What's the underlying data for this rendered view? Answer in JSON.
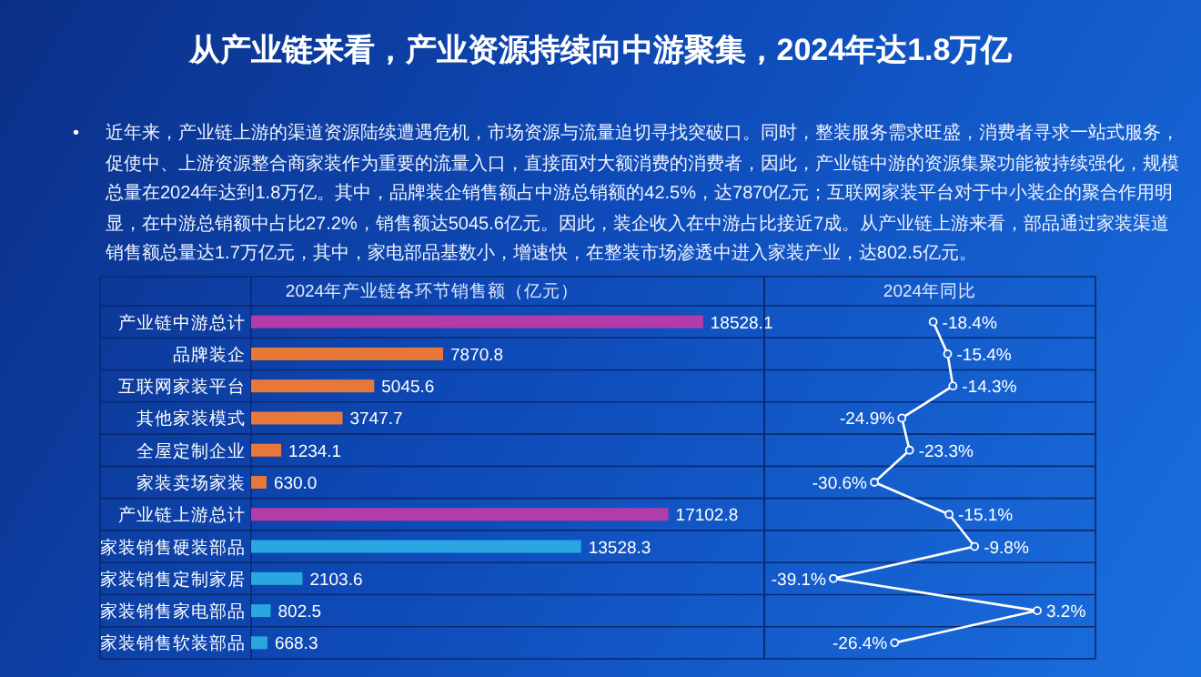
{
  "chart_data": [
    {
      "type": "other",
      "title": "从产业链来看，产业资源持续向中游聚集，2024年达1.8万亿",
      "annotations": [
        "•",
        "近年来，产业链上游的渠道资源陆续遭遇危机，市场资源与流量迫切寻找突破口。同时，整装服务需求旺盛，消费者寻求一站式服务，促使中、上游资源整合商家装作为重要的流量入口，直接面对大额消费的消费者，因此，产业链中游的资源集聚功能被持续强化，规模总量在2024年达到1.8万亿。其中，品牌装企销售额占中游总销额的42.5%，达7870亿元；互联网家装平台对于中小装企的聚合作用明显，在中游总销额中占比27.2%，销售额达5045.6亿元。因此，装企收入在中游占比接近7成。从产业链上游来看，部品通过家装渠道销售额总量达1.7万亿元，其中，家电部品基数小，增速快，在整装市场渗透中进入家装产业，达802.5亿元。"
      ]
    },
    {
      "type": "bar",
      "orientation": "horizontal",
      "title": "2024年产业链各环节销售额（亿元）",
      "tick_labels": "y",
      "categories": [
        "产业链中游总计",
        "品牌装企",
        "互联网家装平台",
        "其他家装模式",
        "全屋定制企业",
        "家装卖场家装",
        "产业链上游总计",
        "家装销售硬装部品",
        "家装销售定制家居",
        "家装销售家电部品",
        "家装销售软装部品"
      ],
      "values": [
        18528.1,
        7870.8,
        5045.6,
        3747.7,
        1234.1,
        630.0,
        17102.8,
        13528.3,
        2103.6,
        802.5,
        668.3
      ],
      "value_labels": [
        "18528.1",
        "7870.8",
        "5045.6",
        "3747.7",
        "1234.1",
        "630.0",
        "17102.8",
        "13528.3",
        "2103.6",
        "802.5",
        "668.3"
      ],
      "colors": [
        "#b43ca8",
        "#e8783a",
        "#e8783a",
        "#e8783a",
        "#e8783a",
        "#e8783a",
        "#b43ca8",
        "#2aa6e0",
        "#2aa6e0",
        "#2aa6e0",
        "#2aa6e0"
      ]
    },
    {
      "type": "line",
      "orientation": "horizontal",
      "title": "2024年同比",
      "tick_labels": false,
      "marker": "circle",
      "categories": [
        null,
        null,
        null,
        null,
        null,
        null,
        null,
        null,
        null,
        null,
        null
      ],
      "series": [
        {
          "color": "#ffffff",
          "values": [
            -18.4,
            -15.4,
            -14.3,
            -24.9,
            -23.3,
            -30.6,
            -15.1,
            -9.8,
            -39.1,
            3.2,
            -26.4
          ],
          "value_labels": [
            "-18.4%",
            "-15.4%",
            "-14.3%",
            "-24.9%",
            "-23.3%",
            "-30.6%",
            "-15.1%",
            "-9.8%",
            "-39.1%",
            "3.2%",
            "-26.4%"
          ]
        }
      ]
    }
  ]
}
